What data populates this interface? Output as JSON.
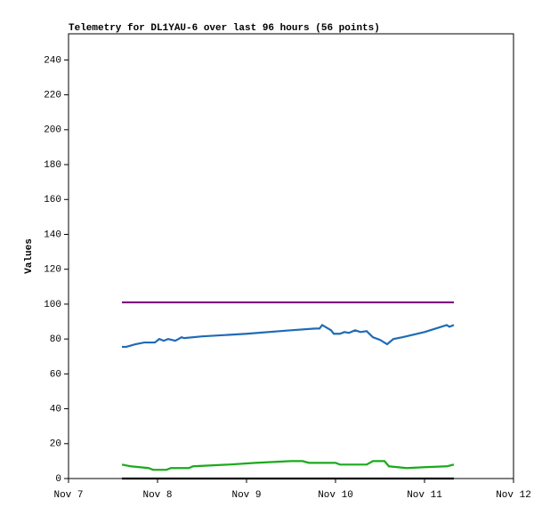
{
  "chart_data": {
    "type": "line",
    "title": "Telemetry for DL1YAU-6 over last 96 hours (56 points)",
    "y_label": "Values",
    "xlim": [
      7,
      12
    ],
    "xticks": [
      {
        "value": 7,
        "label": "Nov 7"
      },
      {
        "value": 8,
        "label": "Nov 8"
      },
      {
        "value": 9,
        "label": "Nov 9"
      },
      {
        "value": 10,
        "label": "Nov 10"
      },
      {
        "value": 11,
        "label": "Nov 11"
      },
      {
        "value": 12,
        "label": "Nov 12"
      }
    ],
    "ylim": [
      0,
      255
    ],
    "yticks": [
      0,
      20,
      40,
      60,
      80,
      100,
      120,
      140,
      160,
      180,
      200,
      220,
      240
    ],
    "series": [
      {
        "color": "#800080",
        "x": [
          7.6,
          11.33
        ],
        "values": [
          101,
          101
        ]
      },
      {
        "color": "#1f6bb5",
        "x": [
          7.6,
          7.65,
          7.75,
          7.85,
          7.97,
          8.02,
          8.07,
          8.12,
          8.2,
          8.27,
          8.3,
          8.5,
          9.0,
          9.5,
          9.77,
          9.82,
          9.85,
          9.95,
          9.98,
          10.05,
          10.1,
          10.15,
          10.22,
          10.28,
          10.35,
          10.42,
          10.5,
          10.58,
          10.65,
          10.75,
          11.0,
          11.25,
          11.28,
          11.33
        ],
        "values": [
          75.5,
          75.5,
          77,
          78,
          78,
          80,
          79,
          80,
          79,
          81,
          80.5,
          81.5,
          83,
          85,
          86,
          86,
          88,
          85,
          83,
          83,
          84,
          83.5,
          85,
          84,
          84.5,
          81,
          79.5,
          77,
          80,
          81,
          84,
          88,
          87,
          88
        ]
      },
      {
        "color": "#1aaa1a",
        "x": [
          7.6,
          7.7,
          7.9,
          7.95,
          8.1,
          8.15,
          8.35,
          8.4,
          8.8,
          9.1,
          9.3,
          9.5,
          9.63,
          9.7,
          10.0,
          10.05,
          10.35,
          10.42,
          10.55,
          10.6,
          10.8,
          11.0,
          11.25,
          11.33
        ],
        "values": [
          8,
          7,
          6,
          5,
          5,
          6,
          6,
          7,
          8,
          9,
          9.5,
          10,
          10,
          9,
          9,
          8,
          8,
          10,
          10,
          7,
          6,
          6.5,
          7,
          8
        ]
      },
      {
        "color": "#000000",
        "x": [
          7.6,
          11.33
        ],
        "values": [
          0,
          0
        ]
      }
    ]
  }
}
